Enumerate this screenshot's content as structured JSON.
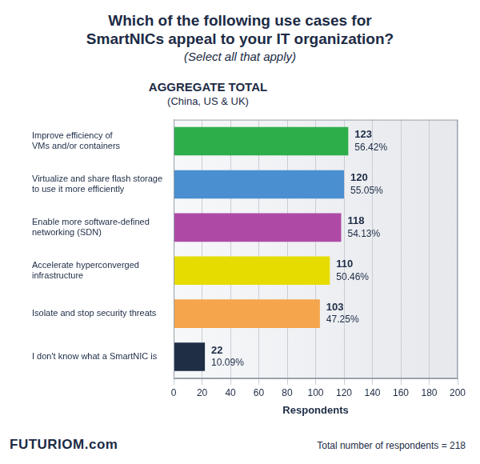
{
  "chart_data": {
    "type": "bar",
    "orientation": "horizontal",
    "title": [
      "Which of the following use cases for",
      "SmartNICs appeal to your IT organization?"
    ],
    "subtitle": "(Select all that apply)",
    "panel_title": "AGGREGATE TOTAL",
    "panel_subtitle": "(China, US & UK)",
    "x_label": "Respondents",
    "categories": [
      [
        "Improve efficiency of",
        "VMs and/or containers"
      ],
      [
        "Virtualize and share flash storage",
        "to use it more efficiently"
      ],
      [
        "Enable more software-defined",
        "networking (SDN)"
      ],
      [
        "Accelerate hyperconverged",
        "infrastructure"
      ],
      [
        "Isolate and stop security threats"
      ],
      [
        "I don't know what a SmartNIC is"
      ]
    ],
    "values": [
      123,
      120,
      118,
      110,
      103,
      22
    ],
    "percentages": [
      56.42,
      55.05,
      54.13,
      50.46,
      47.25,
      10.09
    ],
    "percent_labels": [
      "56.42%",
      "55.05%",
      "54.13%",
      "50.46%",
      "47.25%",
      "10.09%"
    ],
    "colors": [
      "#2eae4a",
      "#4a8fd0",
      "#ae4aa6",
      "#e6dc00",
      "#f5a54c",
      "#1f2e44"
    ],
    "xlim": [
      0,
      200
    ],
    "xticks": [
      0,
      20,
      40,
      60,
      80,
      100,
      120,
      140,
      160,
      180,
      200
    ],
    "grid": true,
    "data_labels": true,
    "brand": "FUTURIOM.com",
    "footer_note": "Total number of respondents = 218"
  }
}
